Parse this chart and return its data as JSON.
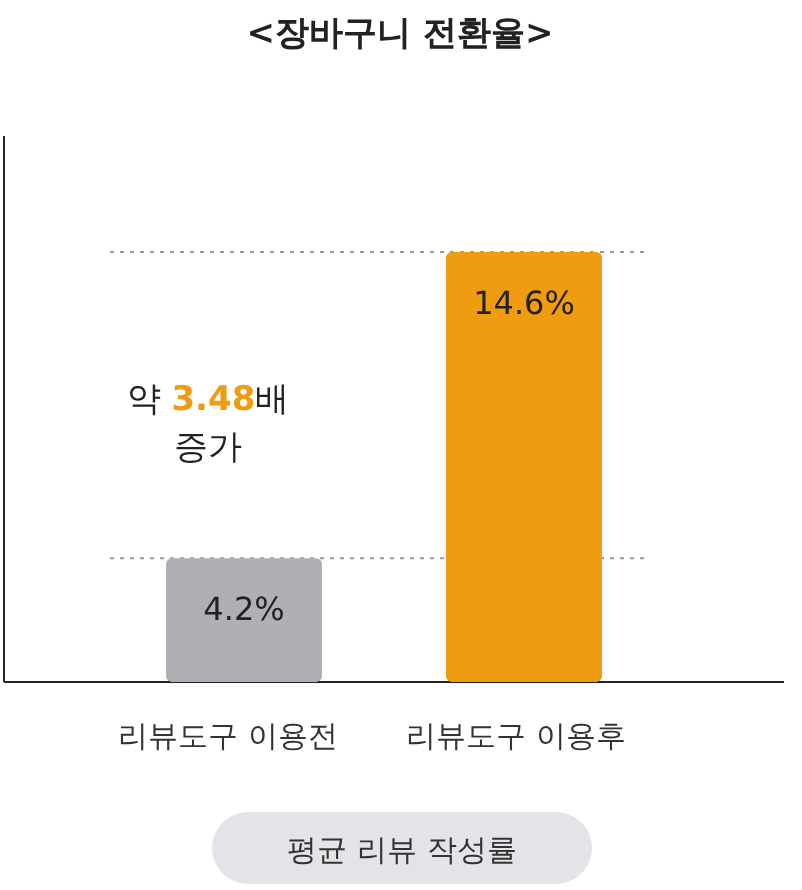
{
  "chart_data": {
    "type": "bar",
    "title": "<장바구니 전환율>",
    "xlabel": "평균 리뷰 작성률",
    "categories": [
      "리뷰도구 이용전",
      "리뷰도구 이용후"
    ],
    "values": [
      4.2,
      14.6
    ],
    "colors": [
      "#b0afb4",
      "#f09c10"
    ],
    "value_labels": [
      "4.2%",
      "14.6%"
    ],
    "ref_lines": [
      {
        "axis": "y",
        "value": 4.2,
        "line_style": "dotted",
        "color": "#9a9a9a"
      },
      {
        "axis": "y",
        "value": 14.6,
        "line_style": "dotted",
        "color": "#9a9a9a"
      }
    ],
    "annotations": [
      "약 3.48배 증가"
    ]
  }
}
